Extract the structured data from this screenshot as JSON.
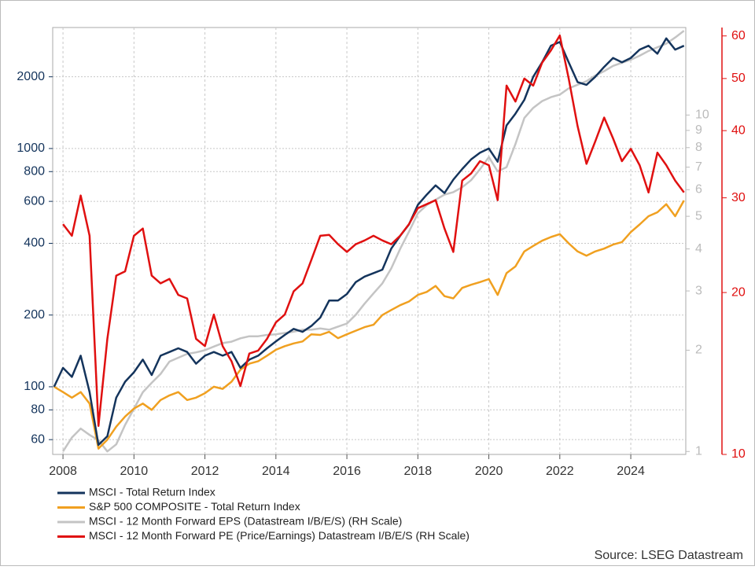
{
  "chart_data": {
    "type": "line",
    "x": [
      2007.75,
      2008,
      2008.25,
      2008.5,
      2008.75,
      2009,
      2009.25,
      2009.5,
      2009.75,
      2010,
      2010.25,
      2010.5,
      2010.75,
      2011,
      2011.25,
      2011.5,
      2011.75,
      2012,
      2012.25,
      2012.5,
      2012.75,
      2013,
      2013.25,
      2013.5,
      2013.75,
      2014,
      2014.25,
      2014.5,
      2014.75,
      2015,
      2015.25,
      2015.5,
      2015.75,
      2016,
      2016.25,
      2016.5,
      2016.75,
      2017,
      2017.25,
      2017.5,
      2017.75,
      2018,
      2018.25,
      2018.5,
      2018.75,
      2019,
      2019.25,
      2019.5,
      2019.75,
      2020,
      2020.25,
      2020.5,
      2020.75,
      2021,
      2021.25,
      2021.5,
      2021.75,
      2022,
      2022.25,
      2022.5,
      2022.75,
      2023,
      2023.25,
      2023.5,
      2023.75,
      2024,
      2024.25,
      2024.5,
      2024.75,
      2025,
      2025.25,
      2025.5
    ],
    "xlim": [
      2007.71,
      2025.55
    ],
    "xticks": [
      2008,
      2010,
      2012,
      2014,
      2016,
      2018,
      2020,
      2022,
      2024
    ],
    "ylim": [
      52,
      3220
    ],
    "yticks": [
      60,
      80,
      100,
      200,
      400,
      600,
      800,
      1000,
      2000
    ],
    "y2lim": [
      0.98,
      18.2
    ],
    "y2ticks": [
      1,
      2,
      3,
      4,
      5,
      6,
      7,
      8,
      9,
      10
    ],
    "y3lim": [
      10,
      62.2
    ],
    "y3ticks": [
      10,
      20,
      30,
      40,
      50,
      60
    ],
    "log_scale": true,
    "grid": true,
    "source": "Source: LSEG Datastream",
    "series": [
      {
        "name": "MSCI - Total Return Index",
        "color": "#14345c",
        "axis": "y",
        "values": [
          100,
          120,
          110,
          135,
          95,
          57,
          62,
          90,
          105,
          115,
          130,
          112,
          135,
          140,
          145,
          140,
          125,
          135,
          140,
          135,
          140,
          120,
          130,
          135,
          145,
          155,
          165,
          175,
          170,
          180,
          195,
          230,
          230,
          245,
          275,
          290,
          300,
          310,
          380,
          430,
          480,
          580,
          640,
          700,
          650,
          740,
          820,
          900,
          960,
          1000,
          880,
          1250,
          1400,
          1600,
          2000,
          2300,
          2700,
          2800,
          2300,
          1900,
          1850,
          2000,
          2200,
          2400,
          2300,
          2400,
          2600,
          2700,
          2500,
          2900,
          2600,
          2700
        ]
      },
      {
        "name": "S&P 500 COMPOSITE - Total Return Index",
        "color": "#f0a020",
        "axis": "y",
        "values": [
          100,
          95,
          90,
          95,
          85,
          55,
          60,
          68,
          75,
          81,
          85,
          80,
          88,
          92,
          95,
          88,
          90,
          94,
          100,
          98,
          105,
          118,
          125,
          128,
          135,
          143,
          148,
          152,
          155,
          166,
          165,
          170,
          160,
          166,
          172,
          178,
          182,
          200,
          210,
          220,
          228,
          243,
          250,
          265,
          240,
          235,
          260,
          268,
          275,
          283,
          243,
          300,
          320,
          370,
          390,
          410,
          425,
          437,
          400,
          370,
          355,
          370,
          380,
          395,
          405,
          446,
          480,
          520,
          540,
          584,
          520,
          605
        ]
      },
      {
        "name": "MSCI - 12 Month Forward EPS (Datastream I/B/E/S) (RH Scale)",
        "color": "#c4c4c4",
        "axis": "y2",
        "values": [
          null,
          1.0,
          1.1,
          1.17,
          1.12,
          1.08,
          1.0,
          1.05,
          1.2,
          1.34,
          1.5,
          1.6,
          1.7,
          1.85,
          1.9,
          1.95,
          1.97,
          2.0,
          2.05,
          2.1,
          2.12,
          2.17,
          2.2,
          2.2,
          2.22,
          2.23,
          2.25,
          2.27,
          2.3,
          2.3,
          2.32,
          2.3,
          2.35,
          2.4,
          2.55,
          2.75,
          2.95,
          3.16,
          3.5,
          4.0,
          4.5,
          5.1,
          5.4,
          5.6,
          5.8,
          5.9,
          6.1,
          6.4,
          6.9,
          7.5,
          6.8,
          7.0,
          8.2,
          9.8,
          10.5,
          11.0,
          11.3,
          11.5,
          12.0,
          12.3,
          12.6,
          13.1,
          13.5,
          14.0,
          14.3,
          14.6,
          15.0,
          15.5,
          15.9,
          16.3,
          17.0,
          17.8
        ]
      },
      {
        "name": "MSCI - 12 Month Forward PE (Price/Earnings) Datastream I/B/E/S (RH Scale)",
        "color": "#e01010",
        "axis": "y3",
        "values": [
          null,
          26.8,
          25.5,
          30.3,
          25.5,
          11.3,
          16.4,
          21.5,
          21.9,
          25.5,
          26.3,
          21.5,
          20.8,
          21.2,
          19.8,
          19.5,
          16.4,
          15.9,
          18.2,
          15.9,
          14.9,
          13.4,
          15.4,
          15.6,
          16.4,
          17.6,
          18.2,
          20.1,
          20.8,
          23.0,
          25.5,
          25.6,
          24.6,
          23.8,
          24.6,
          25.0,
          25.5,
          25.0,
          24.6,
          25.5,
          26.8,
          28.7,
          29.2,
          29.7,
          26.3,
          23.8,
          32.3,
          33.3,
          35.1,
          34.5,
          29.7,
          48.5,
          45.3,
          50,
          48.5,
          53.5,
          56.4,
          60.1,
          50,
          40.8,
          34.7,
          38.2,
          42.3,
          38.7,
          35.1,
          37,
          34.5,
          30.7,
          36.4,
          34.5,
          32.3,
          30.7
        ]
      }
    ]
  }
}
